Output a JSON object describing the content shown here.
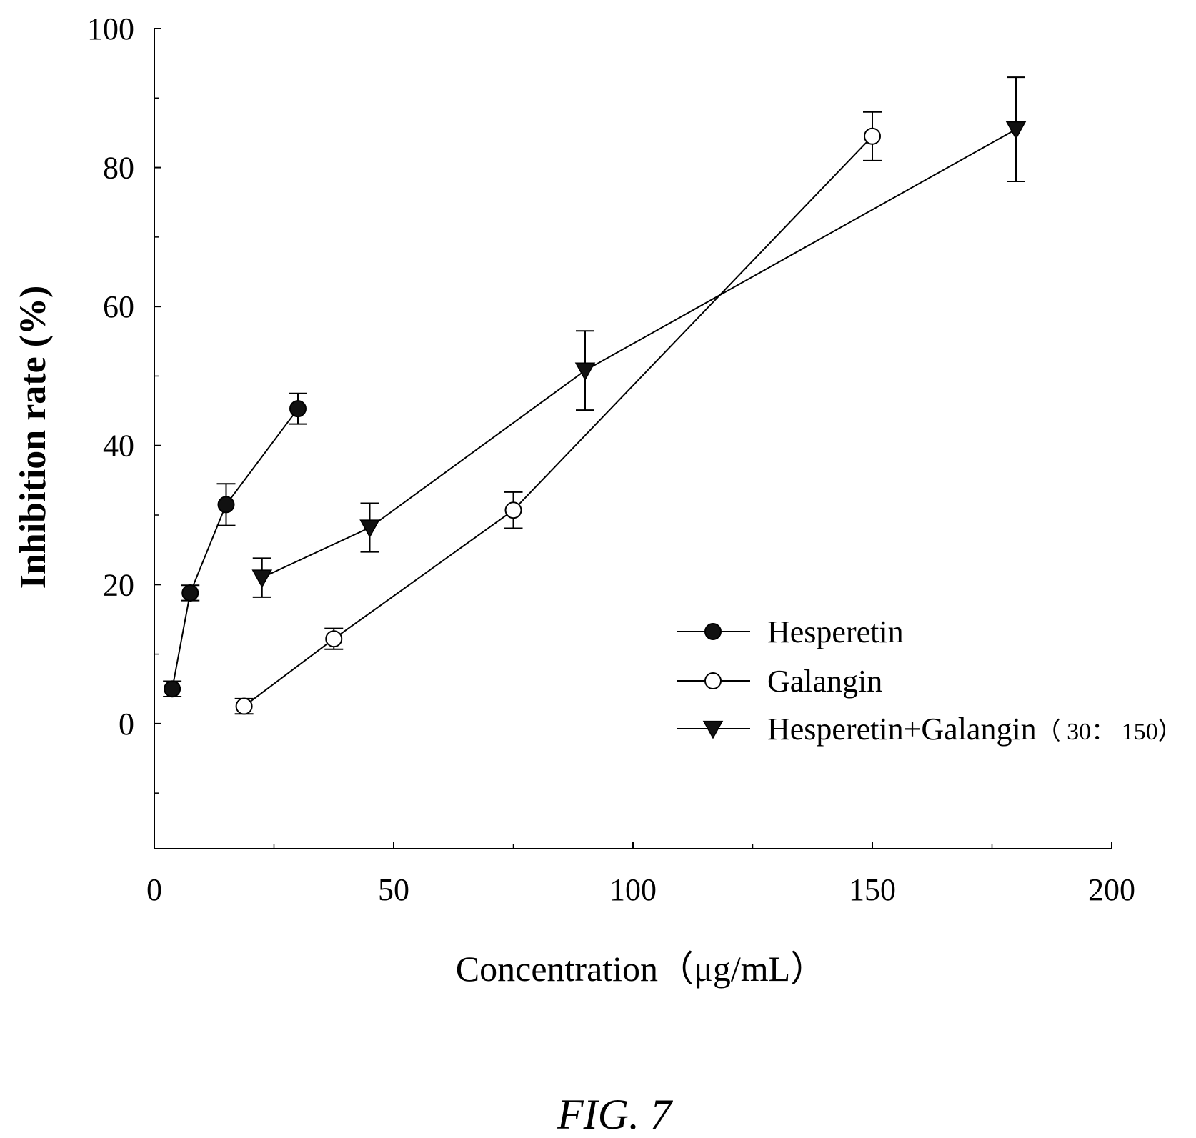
{
  "chart_data": {
    "type": "line",
    "title": "",
    "xlabel": "Concentration（μg/mL）",
    "ylabel": "Inhibition rate (%)",
    "xlim": [
      0,
      200
    ],
    "ylim": [
      -18,
      100
    ],
    "xticks": [
      "0",
      "50",
      "100",
      "150",
      "200"
    ],
    "yticks": [
      "0",
      "20",
      "40",
      "60",
      "80",
      "100"
    ],
    "grid": false,
    "legend_position": "bottom-right",
    "series": [
      {
        "name": "Hesperetin",
        "marker": "filled-circle",
        "x": [
          3.75,
          7.5,
          15,
          30
        ],
        "y": [
          5.0,
          18.8,
          31.5,
          45.3
        ],
        "err": [
          1.1,
          1.1,
          3.0,
          2.2
        ]
      },
      {
        "name": "Galangin",
        "marker": "open-circle",
        "x": [
          18.75,
          37.5,
          75,
          150
        ],
        "y": [
          2.5,
          12.2,
          30.7,
          84.5
        ],
        "err": [
          1.1,
          1.5,
          2.6,
          3.5
        ]
      },
      {
        "name": "Hesperetin+Galangin",
        "name_suffix": "（ 30： 150）",
        "marker": "filled-triangle-down",
        "x": [
          22.5,
          45,
          90,
          180
        ],
        "y": [
          21.0,
          28.2,
          50.8,
          85.5
        ],
        "err": [
          2.8,
          3.5,
          5.7,
          7.5
        ]
      }
    ]
  },
  "caption": "FIG. 7"
}
